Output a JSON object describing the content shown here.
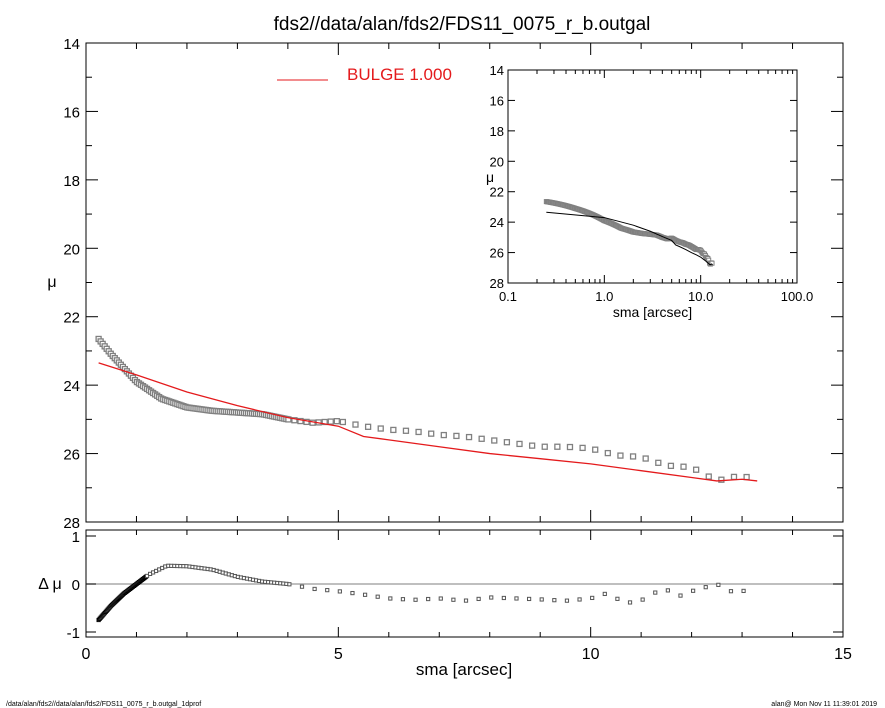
{
  "chart_data": [
    {
      "type": "scatter",
      "panel": "main",
      "title": "fds2//data/alan/fds2/FDS11_0075_r_b.outgal",
      "xlabel": "",
      "ylabel": "μ",
      "xlim": [
        0,
        15
      ],
      "ylim": [
        28,
        14
      ],
      "y_inverted": true,
      "xticks": [
        "0",
        "5",
        "10",
        "15"
      ],
      "yticks": [
        "14",
        "16",
        "18",
        "20",
        "22",
        "24",
        "26",
        "28"
      ],
      "legend": {
        "label": "BULGE  1.000",
        "placement": "top-left",
        "color": "#e41a1c"
      },
      "observed": {
        "marker": "square",
        "color": "#808080",
        "x": [
          0.25,
          0.5,
          1,
          1.5,
          2,
          2.5,
          3,
          3.5,
          4,
          4.5,
          5,
          5.5,
          6,
          6.5,
          7,
          7.5,
          8,
          8.5,
          9,
          9.5,
          10,
          10.5,
          11,
          11.5,
          12,
          12.5,
          12.75,
          13,
          13.25
        ],
        "y": [
          22.65,
          23.1,
          23.9,
          24.4,
          24.65,
          24.75,
          24.8,
          24.85,
          25.0,
          25.1,
          25.05,
          25.2,
          25.3,
          25.35,
          25.45,
          25.5,
          25.6,
          25.7,
          25.8,
          25.8,
          25.85,
          26.05,
          26.1,
          26.35,
          26.4,
          26.8,
          26.7,
          26.65,
          26.75
        ]
      },
      "model": {
        "name": "BULGE  1.000",
        "color": "#e41a1c",
        "x": [
          0.25,
          1,
          2,
          3,
          4,
          5,
          5.5,
          6,
          7,
          8,
          9,
          10,
          11,
          12,
          12.5,
          13,
          13.3
        ],
        "y": [
          23.35,
          23.7,
          24.2,
          24.6,
          24.95,
          25.2,
          25.5,
          25.6,
          25.8,
          26.0,
          26.15,
          26.3,
          26.5,
          26.7,
          26.8,
          26.75,
          26.8
        ]
      }
    },
    {
      "type": "scatter",
      "panel": "inset",
      "xlabel": "sma [arcsec]",
      "ylabel": "μ",
      "xscale": "log",
      "xlim": [
        0.1,
        100
      ],
      "ylim": [
        28,
        14
      ],
      "xticks": [
        "0.1",
        "1.0",
        "10.0",
        "100.0"
      ],
      "yticks": [
        "14",
        "16",
        "18",
        "20",
        "22",
        "24",
        "26",
        "28"
      ],
      "model_color": "#000000"
    },
    {
      "type": "scatter",
      "panel": "residual",
      "xlabel": "sma [arcsec]",
      "ylabel": "Δ μ",
      "xlim": [
        0,
        15
      ],
      "ylim": [
        -1,
        1
      ],
      "xticks": [
        "0",
        "5",
        "10",
        "15"
      ],
      "yticks": [
        "-1",
        "0",
        "1"
      ],
      "reference_line": 0,
      "x": [
        0.25,
        0.5,
        0.75,
        1,
        1.25,
        1.6,
        2,
        2.5,
        3,
        3.5,
        4,
        4.5,
        5,
        5.5,
        6,
        6.5,
        7,
        7.5,
        8,
        8.5,
        9,
        9.5,
        10,
        10.3,
        10.5,
        10.9,
        11.2,
        11.5,
        11.8,
        12,
        12.5,
        12.75,
        13,
        13.25
      ],
      "y": [
        -0.75,
        -0.45,
        -0.2,
        0,
        0.2,
        0.38,
        0.37,
        0.3,
        0.15,
        0.05,
        0,
        -0.1,
        -0.15,
        -0.22,
        -0.3,
        -0.33,
        -0.3,
        -0.35,
        -0.28,
        -0.3,
        -0.32,
        -0.35,
        -0.3,
        -0.2,
        -0.3,
        -0.42,
        -0.2,
        -0.12,
        -0.25,
        -0.15,
        0,
        -0.15,
        -0.15,
        -0.1
      ]
    }
  ],
  "footer": {
    "left": "/data/alan/fds2//data/alan/fds2/FDS11_0075_r_b.outgal_1dprof",
    "right": "alan@  Mon Nov 11 11:39:01 2019"
  }
}
